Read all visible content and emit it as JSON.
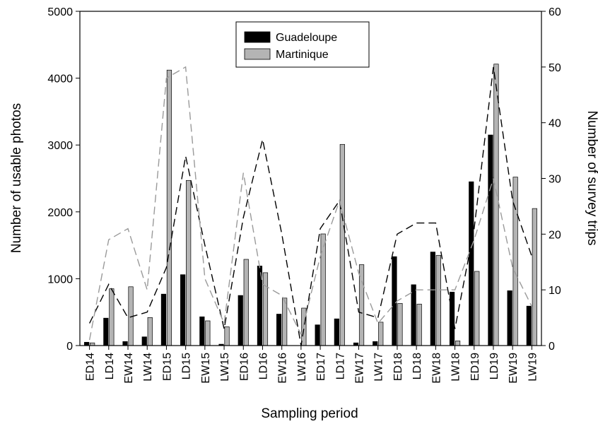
{
  "chart_data": {
    "type": "bar",
    "categories": [
      "ED14",
      "LD14",
      "EW14",
      "LW14",
      "ED15",
      "LD15",
      "EW15",
      "LW15",
      "ED16",
      "LD16",
      "EW16",
      "LW16",
      "ED17",
      "LD17",
      "EW17",
      "LW17",
      "ED18",
      "LD18",
      "EW18",
      "LW18",
      "ED19",
      "LD19",
      "EW19",
      "LW19"
    ],
    "xlabel": "Sampling period",
    "ylabel": "Number of usable photos",
    "ylabel_right": "Number of survey trips",
    "ylim": [
      0,
      5000
    ],
    "ylim_right": [
      0,
      60
    ],
    "yticks": [
      "0",
      "1000",
      "2000",
      "3000",
      "4000",
      "5000"
    ],
    "yticks_right": [
      "0",
      "10",
      "20",
      "30",
      "40",
      "50",
      "60"
    ],
    "legend_position": "top-center",
    "series": [
      {
        "name": "Guadeloupe",
        "kind": "bar",
        "axis": "left",
        "color": "#000000",
        "values": [
          50,
          410,
          60,
          130,
          770,
          1060,
          430,
          20,
          750,
          1190,
          470,
          0,
          310,
          400,
          40,
          60,
          1330,
          910,
          1400,
          800,
          2450,
          3150,
          820,
          590
        ]
      },
      {
        "name": "Martinique",
        "kind": "bar",
        "axis": "left",
        "color": "#b4b4b4",
        "values": [
          40,
          850,
          880,
          420,
          4120,
          2470,
          370,
          280,
          1290,
          1090,
          710,
          560,
          1670,
          3010,
          1210,
          350,
          630,
          620,
          1350,
          70,
          1110,
          4210,
          2520,
          2050
        ]
      },
      {
        "kind": "line",
        "axis": "right",
        "color": "#000000",
        "dash": "dash",
        "values": [
          4,
          11,
          5,
          6,
          14,
          34,
          18,
          3,
          23,
          37,
          20,
          0,
          21,
          26,
          6,
          5,
          20,
          22,
          22,
          3,
          21,
          50,
          26,
          16
        ]
      },
      {
        "kind": "line",
        "axis": "right",
        "color": "#9a9a9a",
        "dash": "dash",
        "values": [
          1,
          19,
          21,
          10,
          48,
          50,
          12,
          4,
          31,
          11,
          9,
          2,
          16,
          26,
          13,
          4,
          8,
          10,
          10,
          10,
          19,
          30,
          14,
          7
        ]
      }
    ]
  }
}
